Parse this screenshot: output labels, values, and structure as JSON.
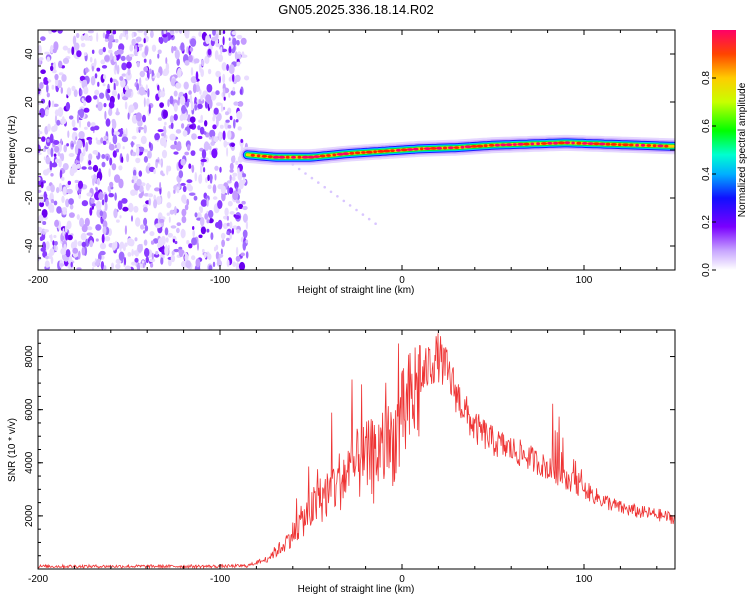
{
  "figure": {
    "title": "GN05.2025.336.18.14.R02"
  },
  "chart_data": [
    {
      "type": "heatmap",
      "title": "GN05.2025.336.18.14.R02",
      "xlabel": "Height of straight line (km)",
      "ylabel": "Frequency (Hz)",
      "xlim": [
        -200,
        150
      ],
      "ylim": [
        -50,
        50
      ],
      "x_ticks": [
        -200,
        -100,
        0,
        100
      ],
      "y_ticks": [
        -40,
        -20,
        0,
        20,
        40
      ],
      "x_tick_labels": [
        "-200",
        "-100",
        "0",
        "100"
      ],
      "y_tick_labels": [
        "-40",
        "-20",
        "0",
        "20",
        "40"
      ],
      "noise_region_x": [
        -200,
        -85
      ],
      "signal_track": {
        "x": [
          -85,
          -70,
          -50,
          -30,
          -10,
          0,
          10,
          30,
          50,
          70,
          90,
          110,
          130,
          150
        ],
        "frequency": [
          -2,
          -3,
          -3,
          -1.5,
          -0.5,
          0,
          0.5,
          1,
          2,
          2.5,
          3,
          2.5,
          2,
          1.5
        ]
      },
      "colorbar": {
        "label": "Normalized spectral amplitude",
        "range": [
          0,
          1
        ],
        "ticks": [
          0.0,
          0.2,
          0.4,
          0.6,
          0.8
        ],
        "tick_labels": [
          "0.0",
          "0.2",
          "0.4",
          "0.6",
          "0.8"
        ]
      }
    },
    {
      "type": "line",
      "xlabel": "Height of straight line (km)",
      "ylabel": "SNR (10 * v/v)",
      "xlim": [
        -200,
        150
      ],
      "ylim": [
        0,
        9000
      ],
      "x_ticks": [
        -200,
        -100,
        0,
        100
      ],
      "y_ticks": [
        2000,
        4000,
        6000,
        8000
      ],
      "x_tick_labels": [
        "-200",
        "-100",
        "0",
        "100"
      ],
      "y_tick_labels": [
        "2000",
        "4000",
        "6000",
        "8000"
      ],
      "color": "#ee3333",
      "series": [
        {
          "name": "SNR",
          "x": [
            -200,
            -180,
            -160,
            -140,
            -120,
            -100,
            -85,
            -75,
            -65,
            -55,
            -45,
            -35,
            -25,
            -15,
            -5,
            5,
            10,
            15,
            20,
            25,
            30,
            35,
            40,
            45,
            50,
            60,
            70,
            80,
            90,
            100,
            110,
            120,
            130,
            140,
            150
          ],
          "y": [
            100,
            100,
            100,
            100,
            100,
            100,
            120,
            350,
            900,
            1800,
            2600,
            3300,
            3900,
            4300,
            4800,
            6300,
            7000,
            7700,
            8000,
            7400,
            6600,
            5900,
            5300,
            5100,
            4800,
            4500,
            4200,
            3800,
            3400,
            3000,
            2600,
            2300,
            2150,
            2050,
            1900
          ]
        }
      ]
    }
  ]
}
